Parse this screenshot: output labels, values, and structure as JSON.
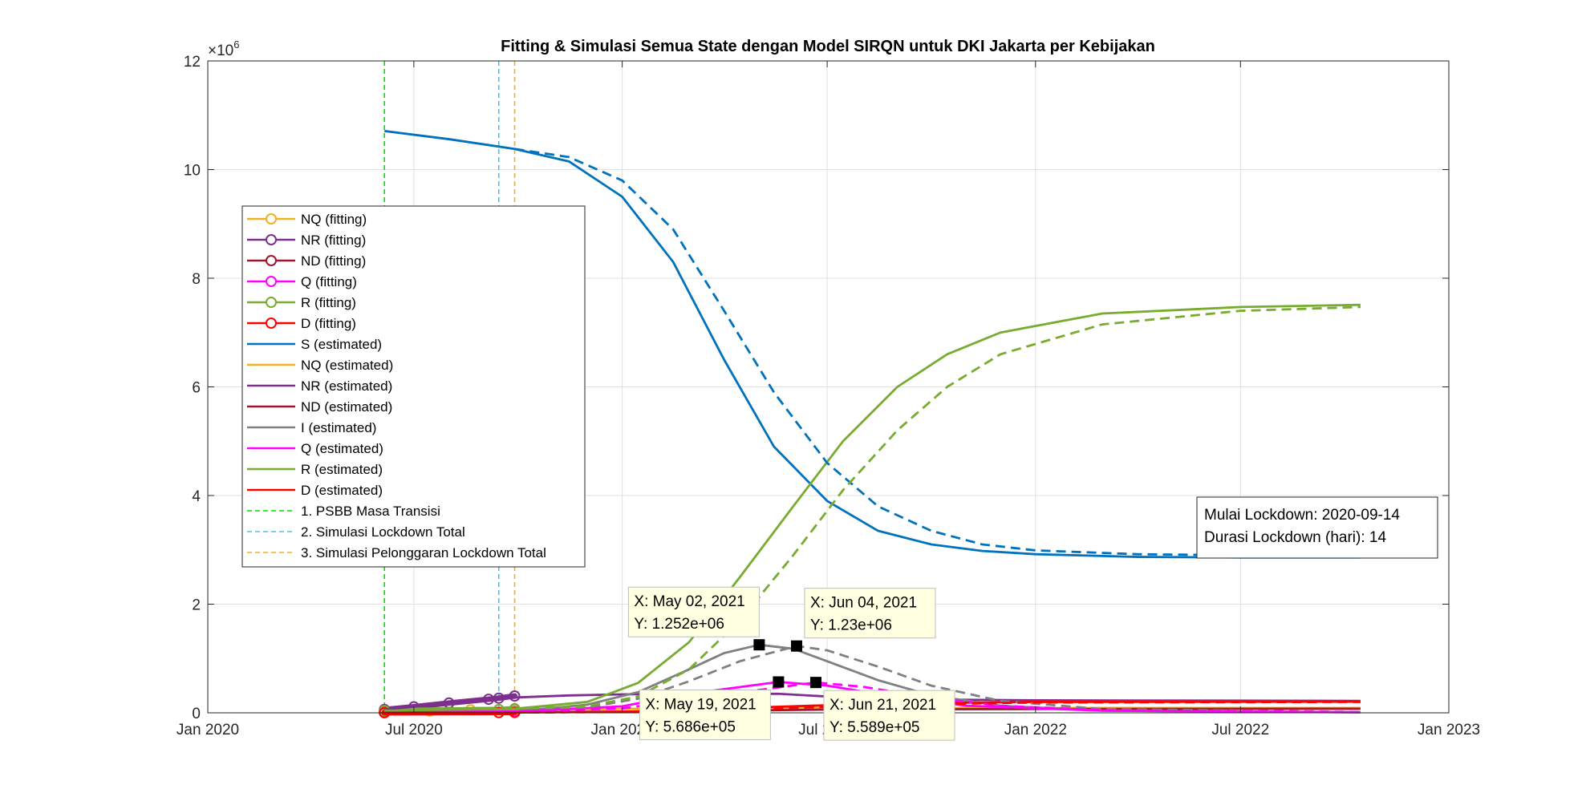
{
  "chart_data": {
    "type": "line",
    "title": "Fitting & Simulasi Semua State dengan Model SIRQN untuk DKI Jakarta per Kebijakan",
    "xlabel": "",
    "ylabel": "",
    "y_multiplier_label": "×10",
    "y_multiplier_exp": "6",
    "x_axis": "date",
    "xlim": [
      "2020-01-01",
      "2023-01-01"
    ],
    "ylim": [
      0,
      12000000
    ],
    "grid": true,
    "legend_position": "left",
    "x_ticks": [
      {
        "date": "2020-01-01",
        "label": "Jan 2020"
      },
      {
        "date": "2020-07-01",
        "label": "Jul 2020"
      },
      {
        "date": "2021-01-01",
        "label": "Jan 2021"
      },
      {
        "date": "2021-07-01",
        "label": "Jul 2021"
      },
      {
        "date": "2022-01-01",
        "label": "Jan 2022"
      },
      {
        "date": "2022-07-01",
        "label": "Jul 2022"
      },
      {
        "date": "2023-01-01",
        "label": "Jan 2023"
      }
    ],
    "y_ticks": [
      {
        "value": 0,
        "label": "0"
      },
      {
        "value": 2000000,
        "label": "2"
      },
      {
        "value": 4000000,
        "label": "4"
      },
      {
        "value": 6000000,
        "label": "6"
      },
      {
        "value": 8000000,
        "label": "8"
      },
      {
        "value": 10000000,
        "label": "10"
      },
      {
        "value": 12000000,
        "label": "12"
      }
    ],
    "policy_lines": [
      {
        "name": "1. PSBB Masa Transisi",
        "date": "2020-06-05",
        "color": "#00e000"
      },
      {
        "name": "2. Simulasi Lockdown Total",
        "date": "2020-09-14",
        "color": "#4dbeee"
      },
      {
        "name": "3. Simulasi Pelonggaran Lockdown Total",
        "date": "2020-09-28",
        "color": "#edb120"
      }
    ],
    "series": [
      {
        "name": "NQ (fitting)",
        "color": "#edb120",
        "style": "marker",
        "points": [
          [
            "2020-06-05",
            20000
          ],
          [
            "2020-07-15",
            35000
          ],
          [
            "2020-08-20",
            55000
          ],
          [
            "2020-09-28",
            60000
          ]
        ]
      },
      {
        "name": "NR (fitting)",
        "color": "#7e2f8e",
        "style": "marker",
        "points": [
          [
            "2020-06-05",
            60000
          ],
          [
            "2020-07-01",
            110000
          ],
          [
            "2020-08-01",
            180000
          ],
          [
            "2020-09-05",
            250000
          ],
          [
            "2020-09-14",
            270000
          ],
          [
            "2020-09-28",
            310000
          ]
        ]
      },
      {
        "name": "ND (fitting)",
        "color": "#a2142f",
        "style": "marker",
        "points": [
          [
            "2020-06-05",
            5000
          ],
          [
            "2020-09-28",
            12000
          ]
        ]
      },
      {
        "name": "Q (fitting)",
        "color": "#ff00ff",
        "style": "marker",
        "points": [
          [
            "2020-06-05",
            10000
          ],
          [
            "2020-09-28",
            25000
          ]
        ]
      },
      {
        "name": "R (fitting)",
        "color": "#77ac30",
        "style": "marker",
        "points": [
          [
            "2020-06-05",
            40000
          ],
          [
            "2020-09-14",
            60000
          ],
          [
            "2020-09-28",
            75000
          ]
        ]
      },
      {
        "name": "D (fitting)",
        "color": "#ff0000",
        "style": "marker",
        "points": [
          [
            "2020-06-05",
            2000
          ],
          [
            "2020-09-14",
            5000
          ],
          [
            "2020-09-28",
            6000
          ]
        ]
      },
      {
        "name": "S (estimated)",
        "color": "#0072bd",
        "style": "solid",
        "points": [
          [
            "2020-06-05",
            10710000
          ],
          [
            "2020-08-01",
            10560000
          ],
          [
            "2020-09-28",
            10380000
          ],
          [
            "2020-11-15",
            10150000
          ],
          [
            "2021-01-01",
            9500000
          ],
          [
            "2021-02-15",
            8300000
          ],
          [
            "2021-04-01",
            6500000
          ],
          [
            "2021-05-15",
            4900000
          ],
          [
            "2021-07-01",
            3900000
          ],
          [
            "2021-08-15",
            3350000
          ],
          [
            "2021-10-01",
            3100000
          ],
          [
            "2021-11-15",
            2980000
          ],
          [
            "2022-01-01",
            2920000
          ],
          [
            "2022-04-01",
            2870000
          ],
          [
            "2022-07-01",
            2860000
          ],
          [
            "2022-10-15",
            2860000
          ]
        ]
      },
      {
        "name": "S (estimated) - Pelonggaran",
        "color": "#0072bd",
        "style": "dashed",
        "points": [
          [
            "2020-09-28",
            10380000
          ],
          [
            "2020-11-15",
            10230000
          ],
          [
            "2021-01-01",
            9800000
          ],
          [
            "2021-02-15",
            8900000
          ],
          [
            "2021-04-01",
            7400000
          ],
          [
            "2021-05-15",
            5900000
          ],
          [
            "2021-07-01",
            4600000
          ],
          [
            "2021-08-15",
            3800000
          ],
          [
            "2021-10-01",
            3350000
          ],
          [
            "2021-11-15",
            3100000
          ],
          [
            "2022-01-01",
            2990000
          ],
          [
            "2022-04-01",
            2920000
          ],
          [
            "2022-07-01",
            2900000
          ],
          [
            "2022-10-15",
            2890000
          ]
        ]
      },
      {
        "name": "NQ (estimated)",
        "color": "#edb120",
        "style": "solid",
        "points": [
          [
            "2020-06-05",
            20000
          ],
          [
            "2020-09-28",
            60000
          ],
          [
            "2021-03-01",
            80000
          ],
          [
            "2021-07-01",
            90000
          ],
          [
            "2022-01-01",
            90000
          ],
          [
            "2022-10-15",
            90000
          ]
        ]
      },
      {
        "name": "NR (estimated)",
        "color": "#7e2f8e",
        "style": "solid",
        "points": [
          [
            "2020-06-05",
            60000
          ],
          [
            "2020-09-14",
            270000
          ],
          [
            "2020-11-15",
            320000
          ],
          [
            "2021-01-01",
            340000
          ],
          [
            "2021-03-01",
            350000
          ],
          [
            "2021-05-19",
            350000
          ],
          [
            "2021-07-01",
            300000
          ],
          [
            "2021-09-01",
            250000
          ],
          [
            "2022-01-01",
            230000
          ],
          [
            "2022-10-15",
            220000
          ]
        ]
      },
      {
        "name": "ND (estimated)",
        "color": "#a2142f",
        "style": "solid",
        "points": [
          [
            "2020-06-05",
            5000
          ],
          [
            "2020-09-28",
            12000
          ],
          [
            "2021-03-01",
            30000
          ],
          [
            "2021-07-01",
            60000
          ],
          [
            "2022-01-01",
            70000
          ],
          [
            "2022-10-15",
            75000
          ]
        ]
      },
      {
        "name": "I (estimated)",
        "color": "#808080",
        "style": "solid",
        "points": [
          [
            "2020-06-05",
            10000
          ],
          [
            "2020-09-28",
            30000
          ],
          [
            "2020-12-01",
            150000
          ],
          [
            "2021-01-15",
            380000
          ],
          [
            "2021-03-01",
            800000
          ],
          [
            "2021-04-01",
            1100000
          ],
          [
            "2021-05-02",
            1252000
          ],
          [
            "2021-06-01",
            1180000
          ],
          [
            "2021-07-01",
            950000
          ],
          [
            "2021-08-15",
            600000
          ],
          [
            "2021-10-01",
            320000
          ],
          [
            "2021-12-01",
            130000
          ],
          [
            "2022-03-01",
            40000
          ],
          [
            "2022-10-15",
            10000
          ]
        ]
      },
      {
        "name": "I (estimated) - Pelonggaran",
        "color": "#808080",
        "style": "dashed",
        "points": [
          [
            "2020-09-28",
            30000
          ],
          [
            "2020-12-01",
            100000
          ],
          [
            "2021-01-15",
            260000
          ],
          [
            "2021-03-01",
            580000
          ],
          [
            "2021-04-15",
            950000
          ],
          [
            "2021-06-04",
            1230000
          ],
          [
            "2021-07-01",
            1150000
          ],
          [
            "2021-08-15",
            850000
          ],
          [
            "2021-10-01",
            500000
          ],
          [
            "2021-12-01",
            220000
          ],
          [
            "2022-03-01",
            70000
          ],
          [
            "2022-10-15",
            15000
          ]
        ]
      },
      {
        "name": "Q (estimated)",
        "color": "#ff00ff",
        "style": "solid",
        "points": [
          [
            "2020-06-05",
            10000
          ],
          [
            "2020-09-28",
            25000
          ],
          [
            "2021-01-01",
            120000
          ],
          [
            "2021-03-01",
            350000
          ],
          [
            "2021-05-19",
            568600
          ],
          [
            "2021-07-01",
            500000
          ],
          [
            "2021-09-01",
            290000
          ],
          [
            "2021-11-01",
            130000
          ],
          [
            "2022-03-01",
            40000
          ],
          [
            "2022-10-15",
            10000
          ]
        ]
      },
      {
        "name": "Q (estimated) - Pelonggaran",
        "color": "#ff00ff",
        "style": "dashed",
        "points": [
          [
            "2020-09-28",
            25000
          ],
          [
            "2021-01-01",
            80000
          ],
          [
            "2021-03-01",
            250000
          ],
          [
            "2021-06-21",
            558900
          ],
          [
            "2021-08-01",
            480000
          ],
          [
            "2021-10-01",
            280000
          ],
          [
            "2021-12-01",
            130000
          ],
          [
            "2022-03-01",
            50000
          ],
          [
            "2022-10-15",
            12000
          ]
        ]
      },
      {
        "name": "R (estimated)",
        "color": "#77ac30",
        "style": "solid",
        "points": [
          [
            "2020-06-05",
            40000
          ],
          [
            "2020-09-28",
            75000
          ],
          [
            "2020-12-01",
            200000
          ],
          [
            "2021-01-15",
            550000
          ],
          [
            "2021-03-01",
            1300000
          ],
          [
            "2021-04-15",
            2500000
          ],
          [
            "2021-06-01",
            3800000
          ],
          [
            "2021-07-15",
            5000000
          ],
          [
            "2021-09-01",
            6000000
          ],
          [
            "2021-10-15",
            6600000
          ],
          [
            "2021-12-01",
            7000000
          ],
          [
            "2022-03-01",
            7350000
          ],
          [
            "2022-07-01",
            7470000
          ],
          [
            "2022-10-15",
            7510000
          ]
        ]
      },
      {
        "name": "R (estimated) - Pelonggaran",
        "color": "#77ac30",
        "style": "dashed",
        "points": [
          [
            "2020-09-28",
            75000
          ],
          [
            "2020-12-01",
            120000
          ],
          [
            "2021-01-15",
            300000
          ],
          [
            "2021-03-01",
            800000
          ],
          [
            "2021-04-15",
            1700000
          ],
          [
            "2021-06-01",
            2900000
          ],
          [
            "2021-07-15",
            4100000
          ],
          [
            "2021-09-01",
            5200000
          ],
          [
            "2021-10-15",
            6000000
          ],
          [
            "2021-12-01",
            6600000
          ],
          [
            "2022-03-01",
            7150000
          ],
          [
            "2022-07-01",
            7400000
          ],
          [
            "2022-10-15",
            7470000
          ]
        ]
      },
      {
        "name": "D (estimated)",
        "color": "#ff0000",
        "style": "solid",
        "points": [
          [
            "2020-06-05",
            2000
          ],
          [
            "2020-09-28",
            6000
          ],
          [
            "2021-01-01",
            20000
          ],
          [
            "2021-03-01",
            50000
          ],
          [
            "2021-05-01",
            100000
          ],
          [
            "2021-07-01",
            140000
          ],
          [
            "2021-10-01",
            180000
          ],
          [
            "2022-01-01",
            200000
          ],
          [
            "2022-10-15",
            205000
          ]
        ]
      },
      {
        "name": "D (estimated) - Pelonggaran",
        "color": "#ff0000",
        "style": "dashed",
        "points": [
          [
            "2020-09-28",
            6000
          ],
          [
            "2021-01-01",
            15000
          ],
          [
            "2021-03-01",
            35000
          ],
          [
            "2021-05-01",
            70000
          ],
          [
            "2021-07-01",
            110000
          ],
          [
            "2021-10-01",
            160000
          ],
          [
            "2022-01-01",
            190000
          ],
          [
            "2022-10-15",
            200000
          ]
        ]
      }
    ],
    "legend": [
      {
        "label": "NQ (fitting)",
        "color": "#edb120",
        "style": "marker"
      },
      {
        "label": "NR (fitting)",
        "color": "#7e2f8e",
        "style": "marker"
      },
      {
        "label": "ND (fitting)",
        "color": "#a2142f",
        "style": "marker"
      },
      {
        "label": "Q (fitting)",
        "color": "#ff00ff",
        "style": "marker"
      },
      {
        "label": "R (fitting)",
        "color": "#77ac30",
        "style": "marker"
      },
      {
        "label": "D (fitting)",
        "color": "#ff0000",
        "style": "marker"
      },
      {
        "label": "S (estimated)",
        "color": "#0072bd",
        "style": "line"
      },
      {
        "label": "NQ (estimated)",
        "color": "#edb120",
        "style": "line"
      },
      {
        "label": "NR (estimated)",
        "color": "#7e2f8e",
        "style": "line"
      },
      {
        "label": "ND (estimated)",
        "color": "#a2142f",
        "style": "line"
      },
      {
        "label": "I (estimated)",
        "color": "#808080",
        "style": "line"
      },
      {
        "label": "Q (estimated)",
        "color": "#ff00ff",
        "style": "line"
      },
      {
        "label": "R (estimated)",
        "color": "#77ac30",
        "style": "line"
      },
      {
        "label": "D (estimated)",
        "color": "#ff0000",
        "style": "line"
      },
      {
        "label": "1. PSBB Masa Transisi",
        "color": "#00e000",
        "style": "dashed"
      },
      {
        "label": "2. Simulasi Lockdown Total",
        "color": "#4dbeee",
        "style": "dashed"
      },
      {
        "label": "3. Simulasi Pelonggaran Lockdown Total",
        "color": "#edb120",
        "style": "dashed"
      }
    ],
    "datatips": [
      {
        "x_text": "X: May 02, 2021",
        "y_text": "Y: 1.252e+06",
        "date": "2021-05-02",
        "value": 1252000,
        "placement": "above-left"
      },
      {
        "x_text": "X: Jun 04, 2021",
        "y_text": "Y: 1.23e+06",
        "date": "2021-06-04",
        "value": 1230000,
        "placement": "above-right"
      },
      {
        "x_text": "X: May 19, 2021",
        "y_text": "Y: 5.686e+05",
        "date": "2021-05-19",
        "value": 568600,
        "placement": "below-left"
      },
      {
        "x_text": "X: Jun 21, 2021",
        "y_text": "Y: 5.589e+05",
        "date": "2021-06-21",
        "value": 558900,
        "placement": "below-right"
      }
    ],
    "info_box": {
      "lines": [
        "Mulai Lockdown: 2020-09-14",
        "Durasi Lockdown (hari): 14"
      ]
    }
  }
}
